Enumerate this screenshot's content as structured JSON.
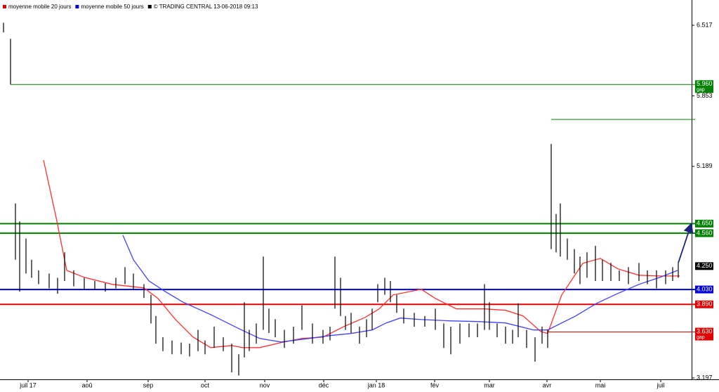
{
  "chart_data": {
    "type": "ohlc",
    "legend": [
      {
        "name": "moyenne mobile 20 jours",
        "color": "#e00000"
      },
      {
        "name": "moyenne mobile 50 jours",
        "color": "#0000e0"
      },
      {
        "name": "© TRADING CENTRAL 13-06-2018 09:13",
        "color": "#000000"
      }
    ],
    "xlim": [
      0,
      246.25
    ],
    "ylim": [
      3.184,
      6.755
    ],
    "yticks": [
      3.197,
      5.189,
      5.853,
      6.517
    ],
    "xticks": [
      {
        "value": 10,
        "label": "juil 17"
      },
      {
        "value": 31,
        "label": "aoû"
      },
      {
        "value": 52.75,
        "label": "sep"
      },
      {
        "value": 73,
        "label": "oct"
      },
      {
        "value": 94.25,
        "label": "nov"
      },
      {
        "value": 115.25,
        "label": "déc"
      },
      {
        "value": 134,
        "label": "jan 18"
      },
      {
        "value": 154.75,
        "label": "fév"
      },
      {
        "value": 174.25,
        "label": "mar"
      },
      {
        "value": 194.75,
        "label": "avr"
      },
      {
        "value": 213.75,
        "label": "mai"
      },
      {
        "value": 235.25,
        "label": "juil"
      }
    ],
    "bars": {
      "color": "#000000",
      "x": [
        1.25,
        3.75,
        5.5,
        7,
        9.25,
        11.25,
        13.75,
        17.5,
        20.5,
        23,
        26.25,
        30,
        33.75,
        37.5,
        41.25,
        44.5,
        47.5,
        51.25,
        53.75,
        55.5,
        58,
        61.25,
        64.5,
        67.5,
        70.5,
        73,
        76.25,
        79.5,
        82.5,
        85,
        87,
        88.75,
        91.25,
        93.75,
        95.75,
        98,
        101.25,
        104.5,
        107.5,
        111.25,
        115,
        117.5,
        119.25,
        121.25,
        123,
        125,
        128,
        130.5,
        132.5,
        134.5,
        137,
        139,
        141.25,
        143.75,
        147.5,
        151.25,
        155,
        158,
        160.5,
        163.75,
        167,
        170,
        172.5,
        174.25,
        177,
        180,
        182.5,
        184.5,
        187.5,
        190.5,
        193,
        195,
        196.25,
        198,
        199.5,
        202,
        204.5,
        206.5,
        209,
        212,
        214.5,
        217.5,
        220.5,
        223.75,
        227.5,
        230.5,
        233.75,
        237,
        239.5,
        241.5
      ],
      "high": [
        6.54,
        6.39,
        4.84,
        4.67,
        4.51,
        4.31,
        4.21,
        4.18,
        4.14,
        4.38,
        4.21,
        4.14,
        4.11,
        4.09,
        4.14,
        4.24,
        4.18,
        4.08,
        3.98,
        3.78,
        3.58,
        3.55,
        3.53,
        3.52,
        3.65,
        3.55,
        3.68,
        3.58,
        3.52,
        3.42,
        3.91,
        3.65,
        3.71,
        4.34,
        3.85,
        3.75,
        3.65,
        3.68,
        3.88,
        3.71,
        3.65,
        3.68,
        4.34,
        4.14,
        3.78,
        3.81,
        3.68,
        3.75,
        3.85,
        4.08,
        4.14,
        4.11,
        3.98,
        3.85,
        3.81,
        3.78,
        3.85,
        3.71,
        3.68,
        3.71,
        3.71,
        3.71,
        4.08,
        3.91,
        3.71,
        3.68,
        3.65,
        3.9,
        3.65,
        3.58,
        3.68,
        3.65,
        5.4,
        4.74,
        4.84,
        4.51,
        4.41,
        4.34,
        4.38,
        4.44,
        4.31,
        4.28,
        4.21,
        4.24,
        4.28,
        4.21,
        4.21,
        4.21,
        4.24,
        4.28
      ],
      "low": [
        6.45,
        5.96,
        4.31,
        4.01,
        4.18,
        4.14,
        4.08,
        4.04,
        3.99,
        4.11,
        4.06,
        4.03,
        4.03,
        4.01,
        4.04,
        4.08,
        4.03,
        3.95,
        3.71,
        3.52,
        3.45,
        3.42,
        3.42,
        3.4,
        3.45,
        3.42,
        3.48,
        3.45,
        3.25,
        3.22,
        3.39,
        3.45,
        3.52,
        3.65,
        3.62,
        3.58,
        3.48,
        3.52,
        3.65,
        3.52,
        3.52,
        3.55,
        3.85,
        3.78,
        3.65,
        3.62,
        3.52,
        3.58,
        3.65,
        3.91,
        3.98,
        3.91,
        3.81,
        3.71,
        3.68,
        3.68,
        3.65,
        3.48,
        3.42,
        3.52,
        3.58,
        3.58,
        3.65,
        3.65,
        3.58,
        3.52,
        3.52,
        3.58,
        3.48,
        3.35,
        3.52,
        3.48,
        4.41,
        4.38,
        4.34,
        4.31,
        4.18,
        4.08,
        4.14,
        4.11,
        4.11,
        4.11,
        4.11,
        4.08,
        4.11,
        4.08,
        4.04,
        4.08,
        4.11,
        4.14
      ]
    },
    "series": [
      {
        "name": "moyenne mobile 20 jours",
        "color": "#ff3030",
        "x": [
          15.5,
          20,
          23.75,
          30,
          40,
          51.25,
          56.25,
          62.5,
          68.75,
          75,
          82.5,
          86.25,
          92.5,
          100,
          107.5,
          115,
          122.5,
          130,
          135,
          140,
          150,
          155,
          162.5,
          172.5,
          180,
          186.25,
          192.5,
          195,
          200,
          207.5,
          213.75,
          220,
          227.5,
          235,
          242
        ],
        "values": [
          5.248,
          4.706,
          4.21,
          4.144,
          4.078,
          4.045,
          3.946,
          3.747,
          3.582,
          3.483,
          3.503,
          3.483,
          3.483,
          3.53,
          3.569,
          3.582,
          3.682,
          3.767,
          3.847,
          3.979,
          4.032,
          3.946,
          3.847,
          3.847,
          3.834,
          3.781,
          3.635,
          3.616,
          3.979,
          4.276,
          4.323,
          4.224,
          4.164,
          4.157,
          4.157
        ]
      },
      {
        "name": "moyenne mobile 50 jours",
        "color": "#4040ff",
        "x": [
          43.75,
          47.5,
          53,
          58.75,
          65,
          75,
          85,
          92.5,
          100,
          110,
          117.5,
          125,
          132.5,
          137.5,
          142.5,
          150,
          160,
          170,
          180,
          190,
          195,
          205,
          212.5,
          220,
          227.5,
          235,
          241.25
        ],
        "values": [
          4.541,
          4.31,
          4.111,
          4.012,
          3.913,
          3.794,
          3.662,
          3.569,
          3.536,
          3.569,
          3.596,
          3.616,
          3.649,
          3.715,
          3.761,
          3.747,
          3.735,
          3.728,
          3.715,
          3.649,
          3.649,
          3.781,
          3.9,
          3.993,
          4.078,
          4.144,
          4.21
        ]
      }
    ],
    "levels": [
      {
        "value": 5.96,
        "label": "5.960",
        "note": "gap",
        "color": "#008000",
        "width": 1,
        "start": 3.75
      },
      {
        "value": 5.631,
        "color": "#008000",
        "width": 1,
        "start": 196.25
      },
      {
        "value": 4.65,
        "label": "4.650",
        "color": "#008000",
        "width": 2,
        "start": 0
      },
      {
        "value": 4.56,
        "label": "4.560",
        "color": "#008000",
        "width": 2,
        "start": 0
      },
      {
        "value": 4.25,
        "label": "4.250",
        "color": "#000000"
      },
      {
        "value": 4.03,
        "label": "4.030",
        "color": "#0000e0",
        "width": 2,
        "start": 0
      },
      {
        "value": 3.89,
        "label": "3.890",
        "color": "#e00000",
        "width": 2,
        "start": 0
      },
      {
        "value": 3.63,
        "label": "3.630",
        "note": "gap",
        "color": "#e00000",
        "width": 1,
        "start": 195
      }
    ]
  }
}
